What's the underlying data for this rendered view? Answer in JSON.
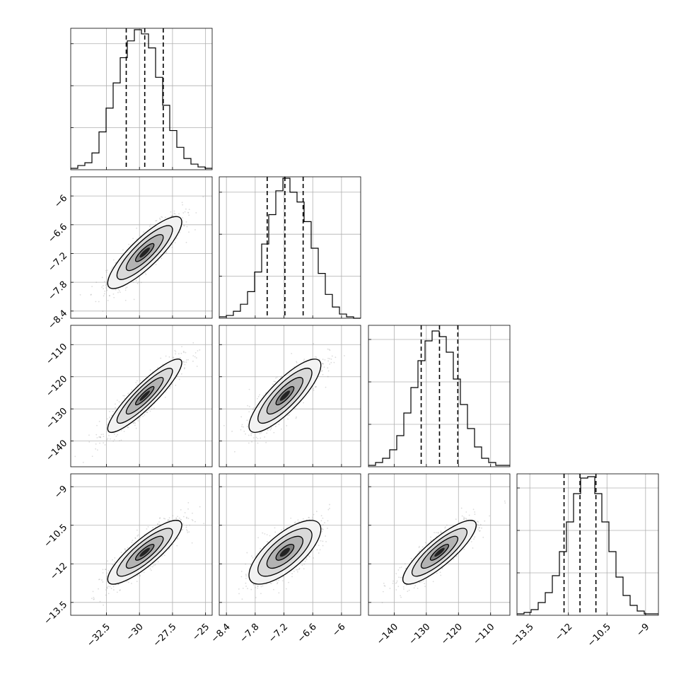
{
  "chart_data": {
    "type": "corner",
    "parameters": [
      {
        "ticks": [
          -32.5,
          -30.0,
          -27.5,
          -25.0
        ],
        "range": [
          -35.2,
          -24.5
        ],
        "quantiles": [
          -31.0,
          -29.6,
          -28.2
        ],
        "hist_counts": [
          0.01,
          0.03,
          0.05,
          0.12,
          0.27,
          0.44,
          0.62,
          0.8,
          0.92,
          1.0,
          0.97,
          0.87,
          0.66,
          0.46,
          0.28,
          0.16,
          0.08,
          0.04,
          0.02,
          0.01
        ],
        "hist_ylim": [
          0,
          1.01
        ]
      },
      {
        "ticks": [
          -8.4,
          -7.8,
          -7.2,
          -6.6,
          -6.0
        ],
        "range": [
          -8.55,
          -5.6
        ],
        "quantiles": [
          -7.55,
          -7.18,
          -6.8
        ],
        "hist_counts": [
          0.01,
          0.02,
          0.05,
          0.1,
          0.19,
          0.33,
          0.53,
          0.74,
          0.91,
          1.0,
          0.9,
          0.83,
          0.69,
          0.5,
          0.32,
          0.17,
          0.08,
          0.03,
          0.01,
          0.0
        ],
        "hist_ylim": [
          0,
          1.01
        ]
      },
      {
        "ticks": [
          -140,
          -130,
          -120,
          -110
        ],
        "range": [
          -148,
          -104
        ],
        "quantiles": [
          -131.6,
          -125.9,
          -120.2
        ],
        "hist_counts": [
          0.01,
          0.03,
          0.06,
          0.12,
          0.22,
          0.38,
          0.56,
          0.75,
          0.89,
          0.96,
          0.92,
          0.81,
          0.62,
          0.44,
          0.27,
          0.14,
          0.06,
          0.03,
          0.01,
          0.01
        ],
        "hist_ylim": [
          0,
          1.0
        ]
      },
      {
        "ticks": [
          -13.5,
          -12.0,
          -10.5,
          -9.0
        ],
        "range": [
          -14.0,
          -8.5
        ],
        "quantiles": [
          -12.17,
          -11.55,
          -10.93
        ],
        "hist_counts": [
          0.01,
          0.02,
          0.04,
          0.09,
          0.16,
          0.28,
          0.45,
          0.66,
          0.86,
          0.97,
          0.98,
          0.86,
          0.66,
          0.45,
          0.27,
          0.14,
          0.07,
          0.03,
          0.01,
          0.01
        ],
        "hist_ylim": [
          0,
          1.0
        ]
      }
    ],
    "correlations": {
      "1-0": 0.85,
      "2-0": 0.9,
      "2-1": 0.83,
      "3-0": 0.85,
      "3-1": 0.72,
      "3-2": 0.85
    },
    "contour_levels_sigma": [
      0.5,
      1.0,
      1.5,
      2.0
    ],
    "grid": true
  }
}
